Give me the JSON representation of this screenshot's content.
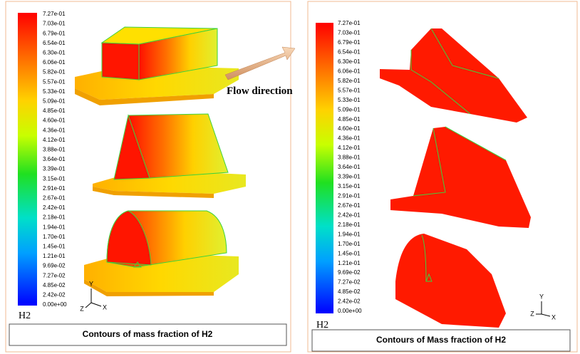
{
  "annotation": "Flow direction",
  "panels": [
    {
      "legend_title": "H2",
      "legend_labels": [
        "7.27e-01",
        "7.03e-01",
        "6.79e-01",
        "6.54e-01",
        "6.30e-01",
        "6.06e-01",
        "5.82e-01",
        "5.57e-01",
        "5.33e-01",
        "5.09e-01",
        "4.85e-01",
        "4.60e-01",
        "4.36e-01",
        "4.12e-01",
        "3.88e-01",
        "3.64e-01",
        "3.39e-01",
        "3.15e-01",
        "2.91e-01",
        "2.67e-01",
        "2.42e-01",
        "2.18e-01",
        "1.94e-01",
        "1.70e-01",
        "1.45e-01",
        "1.21e-01",
        "9.69e-02",
        "7.27e-02",
        "4.85e-02",
        "2.42e-02",
        "0.00e+00"
      ],
      "axes": [
        "Y",
        "Z",
        "X"
      ],
      "caption": "Contours of mass fraction of H2"
    },
    {
      "legend_title": "H2",
      "legend_labels": [
        "7.27e-01",
        "7.03e-01",
        "6.79e-01",
        "6.54e-01",
        "6.30e-01",
        "6.06e-01",
        "5.82e-01",
        "5.57e-01",
        "5.33e-01",
        "5.09e-01",
        "4.85e-01",
        "4.60e-01",
        "4.36e-01",
        "4.12e-01",
        "3.88e-01",
        "3.64e-01",
        "3.39e-01",
        "3.15e-01",
        "2.91e-01",
        "2.67e-01",
        "2.42e-01",
        "2.18e-01",
        "1.94e-01",
        "1.70e-01",
        "1.45e-01",
        "1.21e-01",
        "9.69e-02",
        "7.27e-02",
        "4.85e-02",
        "2.42e-02",
        "0.00e+00"
      ],
      "axes": [
        "Y",
        "Z",
        "X"
      ],
      "caption": "Contours of Mass fraction of H2"
    }
  ]
}
